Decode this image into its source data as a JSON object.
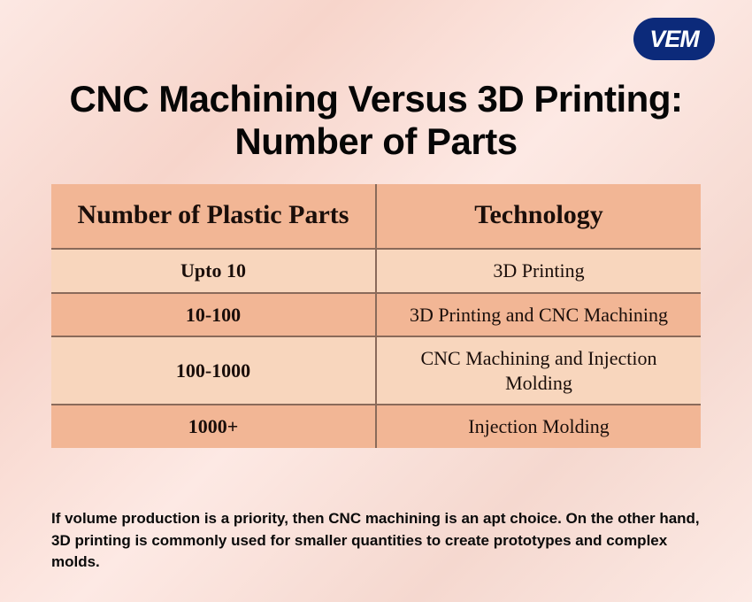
{
  "logo": {
    "text": "VEM"
  },
  "title": "CNC Machining Versus 3D Printing: Number of Parts",
  "table": {
    "type": "table",
    "header_bg": "#f2b695",
    "row_odd_bg": "#f8d6bd",
    "row_even_bg": "#f2b695",
    "border_color": "#8a6a5a",
    "text_color": "#1a0e0a",
    "header_fontsize": 30,
    "cell_fontsize": 22,
    "columns": [
      "Number of Plastic Parts",
      "Technology"
    ],
    "rows": [
      {
        "parts": "Upto 10",
        "tech": "3D Printing"
      },
      {
        "parts": "10-100",
        "tech": "3D Printing and CNC Machining"
      },
      {
        "parts": "100-1000",
        "tech": "CNC Machining and Injection Molding"
      },
      {
        "parts": "1000+",
        "tech": "Injection Molding"
      }
    ]
  },
  "caption": "If volume production is a priority, then CNC machining is an apt choice. On the other hand, 3D printing is commonly used for smaller quantities to create prototypes and complex molds.",
  "background_gradient": [
    "#fce8e3",
    "#f7d5cb",
    "#fde9e4",
    "#f5d8cf",
    "#fceae5"
  ],
  "logo_bg": "#0c2a7a",
  "logo_text_color": "#ffffff"
}
